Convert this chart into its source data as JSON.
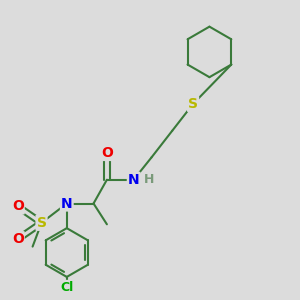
{
  "bg_color": "#dcdcdc",
  "bond_color": "#3a7a3a",
  "atom_colors": {
    "S": "#b8b800",
    "N": "#0000ee",
    "O": "#ee0000",
    "Cl": "#00aa00",
    "H": "#7a9a7a",
    "C": "#3a7a3a"
  },
  "line_width": 1.5,
  "figsize": [
    3.0,
    3.0
  ],
  "dpi": 100,
  "xlim": [
    0,
    10
  ],
  "ylim": [
    0,
    10
  ]
}
